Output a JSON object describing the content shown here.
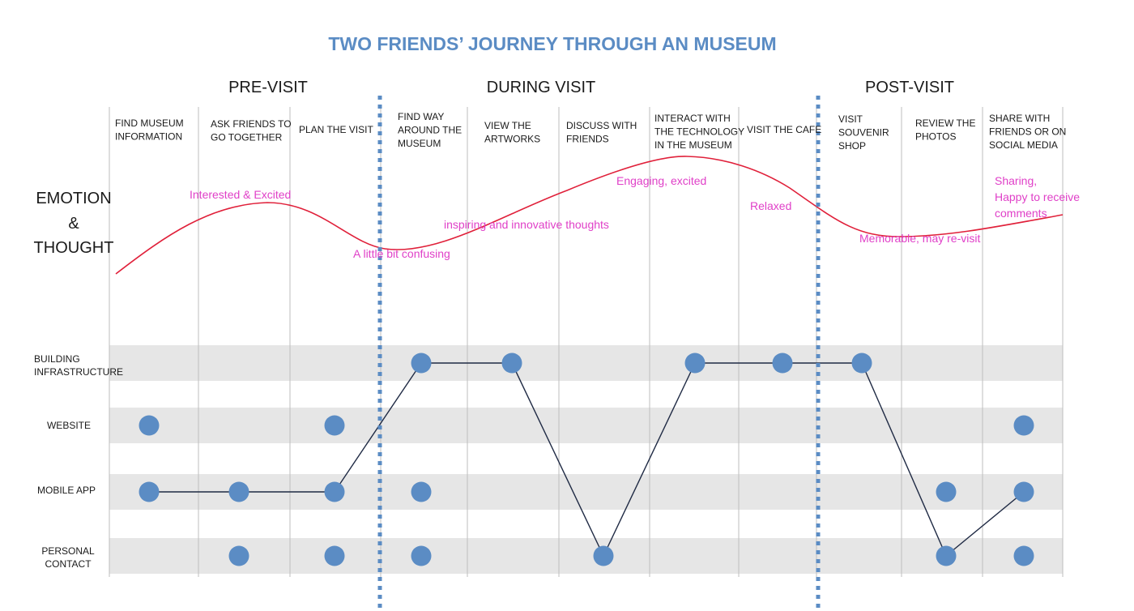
{
  "title": "TWO FRIENDS’ JOURNEY THROUGH AN MUSEUM",
  "colors": {
    "title": "#5b8cc4",
    "dots": "#5b8cc4",
    "divider": "#5b8cc4",
    "curve": "#e0203a",
    "emotion_text": "#e040c8",
    "band": "#e6e6e6",
    "connector": "#1f2a44"
  },
  "phases": [
    "PRE-VISIT",
    "DURING VISIT",
    "POST-VISIT"
  ],
  "stages": [
    [
      "FIND MUSEUM",
      "INFORMATION"
    ],
    [
      "ASK FRIENDS TO",
      "GO TOGETHER"
    ],
    [
      "PLAN THE VISIT"
    ],
    [
      "FIND WAY",
      "AROUND THE",
      "MUSEUM"
    ],
    [
      "VIEW THE",
      "ARTWORKS"
    ],
    [
      "DISCUSS WITH",
      "FRIENDS"
    ],
    [
      "INTERACT WITH",
      "THE TECHNOLOGY",
      "IN THE MUSEUM"
    ],
    [
      "VISIT THE CAFE"
    ],
    [
      "VISIT",
      "SOUVENIR",
      "SHOP"
    ],
    [
      "REVIEW THE",
      "PHOTOS"
    ],
    [
      "SHARE WITH",
      "FRIENDS OR ON",
      "SOCIAL MEDIA"
    ]
  ],
  "emotion_label": [
    "EMOTION",
    "&",
    "THOUGHT"
  ],
  "emotions": [
    [
      "Interested & Excited"
    ],
    [
      "A little bit confusing"
    ],
    [
      "inspiring and innovative thoughts"
    ],
    [
      "Engaging, excited"
    ],
    [
      "Relaxed"
    ],
    [
      "Memorable, may re-visit"
    ],
    [
      "Sharing,",
      "Happy to receive",
      "comments"
    ]
  ],
  "channels": [
    [
      "BUILDING",
      "INFRASTRUCTURE"
    ],
    [
      "WEBSITE"
    ],
    [
      "MOBILE APP"
    ],
    [
      "PERSONAL",
      "CONTACT"
    ]
  ],
  "touchpoints": [
    [
      false,
      true,
      true,
      false
    ],
    [
      false,
      false,
      true,
      true
    ],
    [
      false,
      true,
      true,
      true
    ],
    [
      true,
      false,
      true,
      true
    ],
    [
      true,
      false,
      false,
      false
    ],
    [
      false,
      false,
      false,
      true
    ],
    [
      true,
      false,
      false,
      false
    ],
    [
      true,
      false,
      false,
      false
    ],
    [
      true,
      false,
      false,
      false
    ],
    [
      false,
      false,
      true,
      true
    ],
    [
      false,
      true,
      true,
      true
    ]
  ],
  "journey_path": [
    [
      0,
      2
    ],
    [
      1,
      2
    ],
    [
      2,
      2
    ],
    [
      3,
      0
    ],
    [
      4,
      0
    ],
    [
      5,
      3
    ],
    [
      6,
      0
    ],
    [
      7,
      0
    ],
    [
      8,
      0
    ],
    [
      9,
      3
    ],
    [
      10,
      2
    ]
  ]
}
